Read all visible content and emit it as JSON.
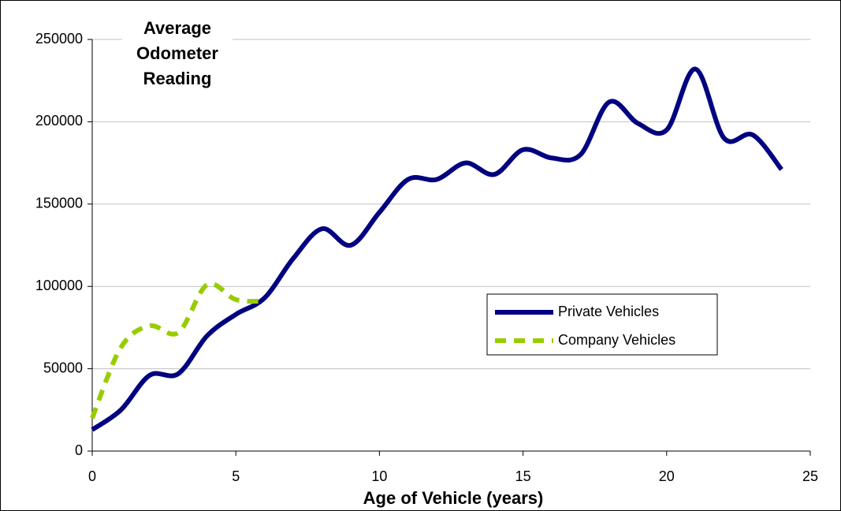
{
  "chart_data": {
    "type": "line",
    "title": "Average Odometer Reading",
    "x_label": "Age of Vehicle (years)",
    "x": [
      0,
      1,
      2,
      3,
      4,
      5,
      6,
      7,
      8,
      9,
      10,
      11,
      12,
      13,
      14,
      15,
      16,
      17,
      18,
      19,
      20,
      21,
      22,
      23,
      24
    ],
    "series": [
      {
        "name": "Private Vehicles",
        "color": "#000080",
        "values": [
          13000,
          25000,
          46000,
          47000,
          70000,
          83000,
          93000,
          117000,
          135000,
          125000,
          145000,
          165000,
          165000,
          175000,
          168000,
          183000,
          178000,
          180000,
          212000,
          199000,
          195000,
          232000,
          190000,
          192000,
          171000
        ]
      },
      {
        "name": "Company Vehicles",
        "color": "#99cc00",
        "values": [
          20000,
          63000,
          76000,
          72000,
          101000,
          92000,
          91000,
          null,
          null,
          null,
          null,
          null,
          null,
          null,
          null,
          null,
          null,
          null,
          null,
          null,
          null,
          null,
          null,
          null,
          null
        ]
      }
    ],
    "xlim": [
      0,
      25
    ],
    "xticks": [
      0,
      5,
      10,
      15,
      20,
      25
    ],
    "ylim": [
      0,
      250000
    ],
    "yticks": [
      0,
      50000,
      100000,
      150000,
      200000,
      250000
    ],
    "grid": true
  }
}
